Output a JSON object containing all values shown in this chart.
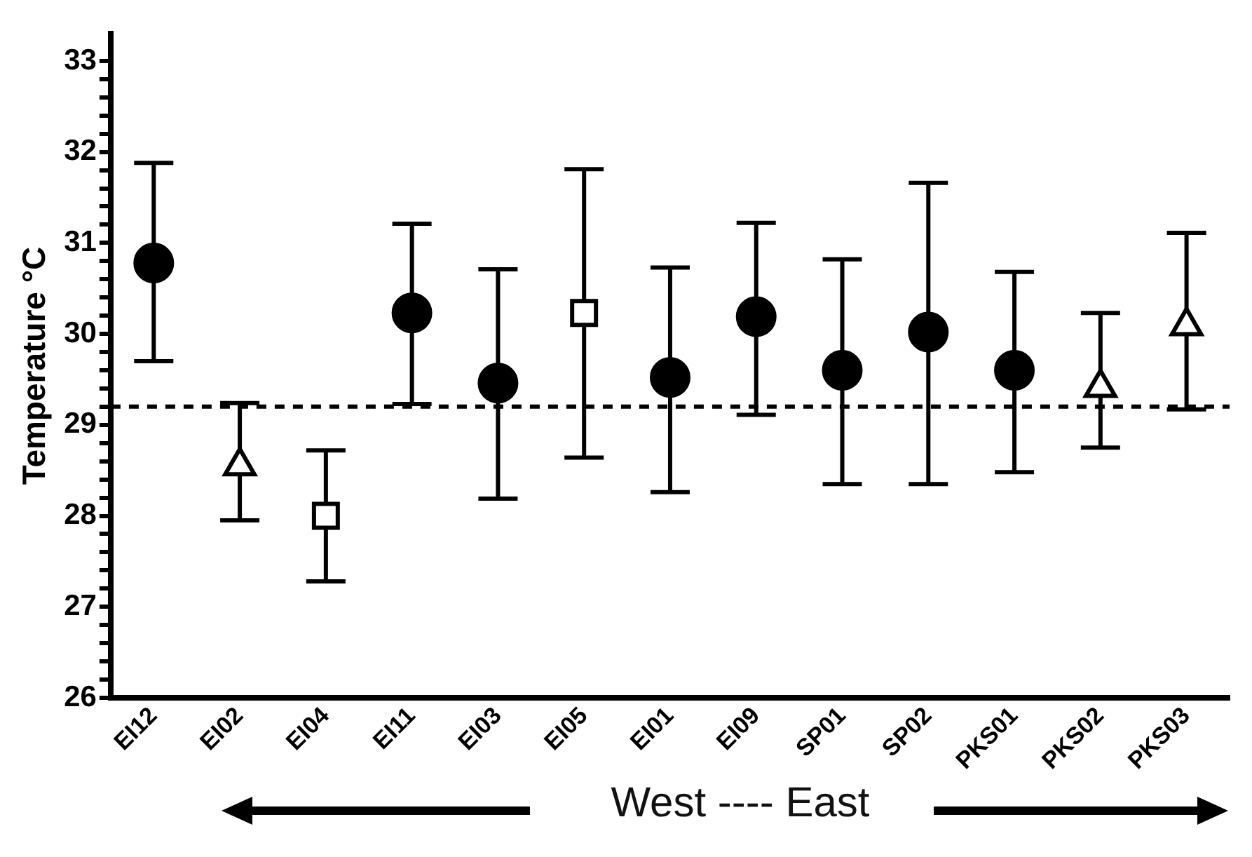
{
  "chart_data": {
    "type": "scatter",
    "ylabel": "Temperature °C",
    "categories": [
      "EI12",
      "EI02",
      "EI04",
      "EI11",
      "EI03",
      "EI05",
      "EI01",
      "EI09",
      "SP01",
      "SP02",
      "PKS01",
      "PKS02",
      "PKS03"
    ],
    "series": [
      {
        "marker": "circle",
        "color": "#000000",
        "x": [
          "EI12",
          "EI11",
          "EI03",
          "EI01",
          "EI09",
          "SP01",
          "SP02",
          "PKS01"
        ],
        "values": [
          30.78,
          30.23,
          29.46,
          29.52,
          30.19,
          29.6,
          30.02,
          29.6
        ],
        "errors": [
          [
            29.7,
            31.88
          ],
          [
            29.23,
            31.21
          ],
          [
            28.19,
            30.71
          ],
          [
            28.26,
            30.73
          ],
          [
            29.11,
            31.22
          ],
          [
            28.35,
            30.82
          ],
          [
            28.35,
            31.66
          ],
          [
            28.48,
            30.68
          ]
        ]
      },
      {
        "marker": "triangle",
        "color": "#ffffff",
        "x": [
          "EI02",
          "PKS02",
          "PKS03"
        ],
        "values": [
          28.55,
          29.41,
          30.09
        ],
        "errors": [
          [
            27.95,
            29.24
          ],
          [
            28.75,
            30.23
          ],
          [
            29.17,
            31.11
          ]
        ]
      },
      {
        "marker": "square",
        "color": "#ffffff",
        "x": [
          "EI04",
          "EI05"
        ],
        "values": [
          28.0,
          30.23
        ],
        "errors": [
          [
            27.28,
            28.72
          ],
          [
            28.64,
            31.81
          ]
        ]
      }
    ],
    "ylim": [
      26,
      33.3
    ],
    "yticks": [
      26,
      {
        "value": 26.2,
        "label": null
      },
      {
        "value": 26.4,
        "label": null
      },
      {
        "value": 26.6,
        "label": null
      },
      {
        "value": 26.8,
        "label": null
      },
      27,
      {
        "value": 27.2,
        "label": null
      },
      {
        "value": 27.4,
        "label": null
      },
      {
        "value": 27.6,
        "label": null
      },
      {
        "value": 27.8,
        "label": null
      },
      28,
      {
        "value": 28.2,
        "label": null
      },
      {
        "value": 28.4,
        "label": null
      },
      {
        "value": 28.6,
        "label": null
      },
      {
        "value": 28.8,
        "label": null
      },
      29,
      {
        "value": 29.2,
        "label": null
      },
      {
        "value": 29.4,
        "label": null
      },
      {
        "value": 29.6,
        "label": null
      },
      {
        "value": 29.8,
        "label": null
      },
      30,
      {
        "value": 30.2,
        "label": null
      },
      {
        "value": 30.4,
        "label": null
      },
      {
        "value": 30.6,
        "label": null
      },
      {
        "value": 30.8,
        "label": null
      },
      31,
      {
        "value": 31.2,
        "label": null
      },
      {
        "value": 31.4,
        "label": null
      },
      {
        "value": 31.6,
        "label": null
      },
      {
        "value": 31.8,
        "label": null
      },
      32,
      {
        "value": 32.2,
        "label": null
      },
      {
        "value": 32.4,
        "label": null
      },
      {
        "value": 32.6,
        "label": null
      },
      {
        "value": 32.8,
        "label": null
      },
      33
    ],
    "ref_lines": [
      {
        "axis": "y",
        "value": 29.2,
        "color": "#000000",
        "line_style": "dashed"
      }
    ],
    "annotations": [
      "West ---- East"
    ],
    "grid": false,
    "legend": false
  }
}
